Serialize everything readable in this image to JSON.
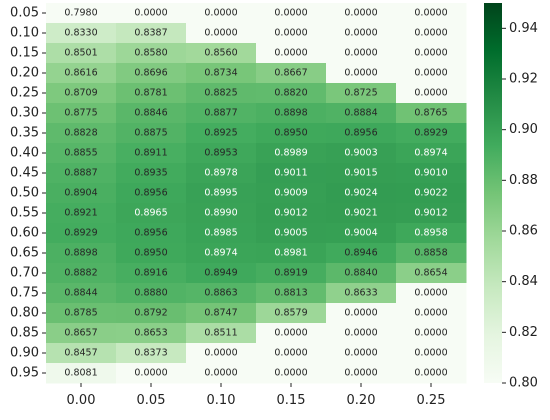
{
  "chart_data": {
    "type": "heatmap",
    "title": "",
    "xlabel": "",
    "ylabel": "",
    "x_categories": [
      "0.00",
      "0.05",
      "0.10",
      "0.15",
      "0.20",
      "0.25"
    ],
    "y_categories": [
      "0.05",
      "0.10",
      "0.15",
      "0.20",
      "0.25",
      "0.30",
      "0.35",
      "0.40",
      "0.45",
      "0.50",
      "0.55",
      "0.60",
      "0.65",
      "0.70",
      "0.75",
      "0.80",
      "0.85",
      "0.90",
      "0.95"
    ],
    "values": [
      [
        "0.7980",
        "0.0000",
        "0.0000",
        "0.0000",
        "0.0000",
        "0.0000"
      ],
      [
        "0.8330",
        "0.8387",
        "0.0000",
        "0.0000",
        "0.0000",
        "0.0000"
      ],
      [
        "0.8501",
        "0.8580",
        "0.8560",
        "0.0000",
        "0.0000",
        "0.0000"
      ],
      [
        "0.8616",
        "0.8696",
        "0.8734",
        "0.8667",
        "0.0000",
        "0.0000"
      ],
      [
        "0.8709",
        "0.8781",
        "0.8825",
        "0.8820",
        "0.8725",
        "0.0000"
      ],
      [
        "0.8775",
        "0.8846",
        "0.8877",
        "0.8898",
        "0.8884",
        "0.8765"
      ],
      [
        "0.8828",
        "0.8875",
        "0.8925",
        "0.8950",
        "0.8956",
        "0.8929"
      ],
      [
        "0.8855",
        "0.8911",
        "0.8953",
        "0.8989",
        "0.9003",
        "0.8974"
      ],
      [
        "0.8887",
        "0.8935",
        "0.8978",
        "0.9011",
        "0.9015",
        "0.9010"
      ],
      [
        "0.8904",
        "0.8956",
        "0.8995",
        "0.9009",
        "0.9024",
        "0.9022"
      ],
      [
        "0.8921",
        "0.8965",
        "0.8990",
        "0.9012",
        "0.9021",
        "0.9012"
      ],
      [
        "0.8929",
        "0.8956",
        "0.8985",
        "0.9005",
        "0.9004",
        "0.8958"
      ],
      [
        "0.8898",
        "0.8950",
        "0.8974",
        "0.8981",
        "0.8946",
        "0.8858"
      ],
      [
        "0.8882",
        "0.8916",
        "0.8949",
        "0.8919",
        "0.8840",
        "0.8654"
      ],
      [
        "0.8844",
        "0.8880",
        "0.8863",
        "0.8813",
        "0.8633",
        "0.0000"
      ],
      [
        "0.8785",
        "0.8792",
        "0.8747",
        "0.8579",
        "0.0000",
        "0.0000"
      ],
      [
        "0.8657",
        "0.8653",
        "0.8511",
        "0.0000",
        "0.0000",
        "0.0000"
      ],
      [
        "0.8457",
        "0.8373",
        "0.0000",
        "0.0000",
        "0.0000",
        "0.0000"
      ],
      [
        "0.8081",
        "0.0000",
        "0.0000",
        "0.0000",
        "0.0000",
        "0.0000"
      ]
    ],
    "color_range": [
      0.8,
      0.95
    ],
    "colorbar_ticks": [
      "0.80",
      "0.82",
      "0.84",
      "0.86",
      "0.88",
      "0.90",
      "0.92",
      "0.94"
    ],
    "colormap": [
      "#f7fcf5",
      "#e5f5e0",
      "#c7e9c0",
      "#a1d99b",
      "#74c476",
      "#41ab5d",
      "#238b45",
      "#006d2c",
      "#00441b"
    ],
    "grid": false,
    "legend": "colorbar-right"
  }
}
